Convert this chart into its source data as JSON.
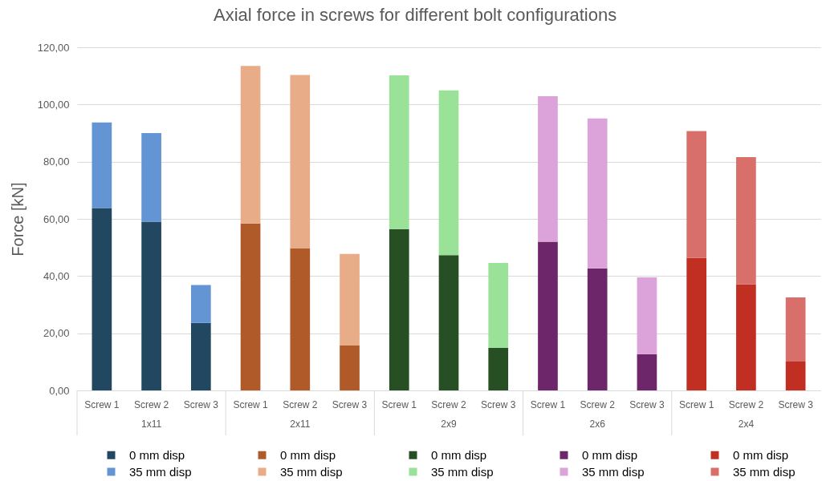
{
  "chart_data": {
    "type": "bar",
    "title": "Axial force in screws for different bolt configurations",
    "ylabel": "Force [kN]",
    "categories": [
      "Screw 1",
      "Screw 2",
      "Screw 3",
      "Screw 1",
      "Screw 2",
      "Screw 3",
      "Screw 1",
      "Screw 2",
      "Screw 3",
      "Screw 1",
      "Screw 2",
      "Screw 3",
      "Screw 1",
      "Screw 2",
      "Screw 3"
    ],
    "annotations": [
      "1x11",
      "2x11",
      "2x9",
      "2x6",
      "2x4"
    ],
    "stacked": true,
    "series": [
      {
        "name": "0 mm disp",
        "color": "#214761",
        "values": [
          63.8,
          59.0,
          23.6,
          null,
          null,
          null,
          null,
          null,
          null,
          null,
          null,
          null,
          null,
          null,
          null
        ]
      },
      {
        "name": "35 mm disp",
        "color": "#6395d4",
        "values": [
          29.9,
          31.0,
          13.3,
          null,
          null,
          null,
          null,
          null,
          null,
          null,
          null,
          null,
          null,
          null,
          null
        ]
      },
      {
        "name": "0 mm disp",
        "color": "#b05a29",
        "values": [
          null,
          null,
          null,
          58.4,
          49.8,
          15.7,
          null,
          null,
          null,
          null,
          null,
          null,
          null,
          null,
          null
        ]
      },
      {
        "name": "35 mm disp",
        "color": "#e8ad88",
        "values": [
          null,
          null,
          null,
          55.1,
          60.5,
          32.0,
          null,
          null,
          null,
          null,
          null,
          null,
          null,
          null,
          null
        ]
      },
      {
        "name": "0 mm disp",
        "color": "#265023",
        "values": [
          null,
          null,
          null,
          null,
          null,
          null,
          56.4,
          47.3,
          14.9,
          null,
          null,
          null,
          null,
          null,
          null
        ]
      },
      {
        "name": "35 mm disp",
        "color": "#9ae298",
        "values": [
          null,
          null,
          null,
          null,
          null,
          null,
          53.8,
          57.6,
          29.7,
          null,
          null,
          null,
          null,
          null,
          null
        ]
      },
      {
        "name": "0 mm disp",
        "color": "#6e266b",
        "values": [
          null,
          null,
          null,
          null,
          null,
          null,
          null,
          null,
          null,
          52.0,
          42.7,
          12.7,
          null,
          null,
          null
        ]
      },
      {
        "name": "35 mm disp",
        "color": "#dba3d9",
        "values": [
          null,
          null,
          null,
          null,
          null,
          null,
          null,
          null,
          null,
          50.9,
          52.4,
          26.8,
          null,
          null,
          null
        ]
      },
      {
        "name": "0 mm disp",
        "color": "#c12f23",
        "values": [
          null,
          null,
          null,
          null,
          null,
          null,
          null,
          null,
          null,
          null,
          null,
          null,
          46.3,
          37.1,
          10.1
        ]
      },
      {
        "name": "35 mm disp",
        "color": "#d96f6b",
        "values": [
          null,
          null,
          null,
          null,
          null,
          null,
          null,
          null,
          null,
          null,
          null,
          null,
          44.4,
          44.5,
          22.4
        ]
      }
    ],
    "ylim": [
      0,
      120
    ],
    "yticks": [
      {
        "value": 0,
        "label": "0,00"
      },
      {
        "value": 20,
        "label": "20,00"
      },
      {
        "value": 40,
        "label": "40,00"
      },
      {
        "value": 60,
        "label": "60,00"
      },
      {
        "value": 80,
        "label": "80,00"
      },
      {
        "value": 100,
        "label": "100,00"
      },
      {
        "value": 120,
        "label": "120,00"
      }
    ],
    "grid": "y",
    "legend": "bottom"
  }
}
